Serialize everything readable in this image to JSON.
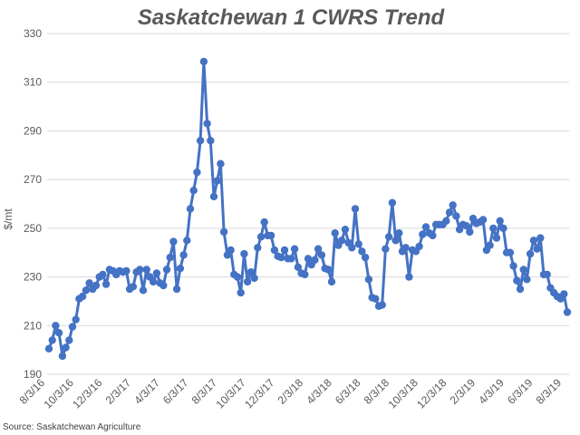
{
  "chart_data": {
    "type": "line",
    "title": "Saskatchewan 1 CWRS Trend",
    "ylabel": "$/mt",
    "xlabel": "",
    "source": "Source: Saskatchewan Agriculture",
    "ylim": [
      190,
      330
    ],
    "yticks": [
      190,
      210,
      230,
      250,
      270,
      290,
      310,
      330
    ],
    "xticks": [
      "8/3/16",
      "10/3/16",
      "12/3/16",
      "2/3/17",
      "4/3/17",
      "6/3/17",
      "8/3/17",
      "10/3/17",
      "12/3/17",
      "2/3/18",
      "4/3/18",
      "6/3/18",
      "8/3/18",
      "10/3/18",
      "12/3/18",
      "2/3/19",
      "4/3/19",
      "6/3/19",
      "8/3/19"
    ],
    "grid": true,
    "legend": "none",
    "series_color": "#4472c4",
    "values": [
      200.5,
      204,
      210,
      207,
      197.5,
      201,
      204,
      209.5,
      212.5,
      221,
      222,
      224.5,
      227.5,
      225,
      226.5,
      230,
      231,
      227,
      233,
      232.5,
      231,
      232.5,
      232,
      232.5,
      225,
      226,
      232,
      233,
      224.5,
      233,
      230,
      228,
      231.5,
      227.5,
      226.5,
      233,
      238,
      244.5,
      225,
      233.5,
      239,
      245,
      258,
      265.5,
      273,
      286,
      318.5,
      293,
      286,
      263,
      269.5,
      276.5,
      248.5,
      239,
      241,
      231,
      230,
      223.5,
      239.5,
      228,
      232,
      229.5,
      242,
      246.5,
      252.5,
      247,
      247,
      241,
      238.5,
      238,
      241,
      237.5,
      237.5,
      241.5,
      234,
      231.5,
      231,
      237.5,
      235,
      237,
      241.5,
      239,
      233.5,
      233,
      228,
      248,
      243,
      245,
      249.5,
      244,
      242,
      258,
      243.5,
      240.5,
      238,
      229,
      221.5,
      221,
      218,
      218.5,
      241.5,
      246.5,
      260.5,
      245,
      248,
      240.5,
      242,
      230,
      241,
      240.5,
      242.5,
      247.5,
      250.5,
      248,
      247,
      251.5,
      251.5,
      251.5,
      253,
      256.5,
      259.5,
      255,
      249.5,
      251.5,
      251,
      248.5,
      254,
      252,
      252.5,
      253.5,
      241,
      243,
      250,
      246,
      253,
      250,
      240,
      240,
      234.5,
      228.5,
      225,
      233,
      229,
      239.5,
      245,
      241.5,
      246,
      231,
      231,
      225.5,
      223.5,
      222,
      221,
      223,
      215.5
    ]
  }
}
